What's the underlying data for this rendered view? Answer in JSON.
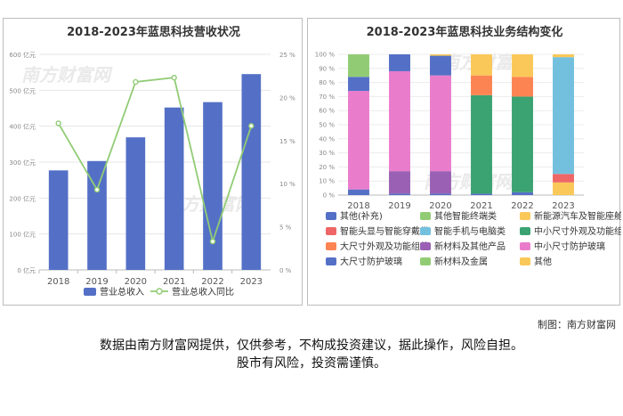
{
  "left_chart": {
    "title": "2018-2023年蓝思科技营收状况"
  },
  "right_chart": {
    "title": "2018-2023年蓝思科技业务结构变化"
  },
  "watermark": "南方财富网",
  "credit": "制图：南方财富网",
  "disclaimer_line1": "数据由南方财富网提供，仅供参考，不构成投资建议，据此操作，风险自担。",
  "disclaimer_line2": "股市有风险，投资需谨慎。",
  "colors": {
    "bar": "#5470c6",
    "line": "#91cc75"
  },
  "chart_data": [
    {
      "type": "bar",
      "title": "2018-2023年蓝思科技营收状况",
      "categories": [
        "2018",
        "2019",
        "2020",
        "2021",
        "2022",
        "2023"
      ],
      "y_ticks": [
        "0 亿元",
        "100 亿元",
        "200 亿元",
        "300 亿元",
        "400 亿元",
        "500 亿元",
        "600 亿元"
      ],
      "y2_ticks": [
        "0 %",
        "5 %",
        "10 %",
        "15 %",
        "20 %",
        "25 %"
      ],
      "ylim": [
        0,
        600
      ],
      "y2lim": [
        0,
        25
      ],
      "series": [
        {
          "name": "营业总收入",
          "type": "bar",
          "values": [
            277,
            303,
            369,
            452,
            467,
            545
          ]
        },
        {
          "name": "营业总收入同比",
          "type": "line",
          "values": [
            17,
            9.3,
            21.8,
            22.3,
            3.3,
            16.7
          ]
        }
      ],
      "legend": "bottom",
      "grid": true
    },
    {
      "type": "bar",
      "stacked": true,
      "title": "2018-2023年蓝思科技业务结构变化",
      "categories": [
        "2018",
        "2019",
        "2020",
        "2021",
        "2022",
        "2023"
      ],
      "y_ticks": [
        "0 %",
        "10 %",
        "20 %",
        "30 %",
        "40 %",
        "50 %",
        "60 %",
        "70 %",
        "80 %",
        "90 %",
        "100 %"
      ],
      "ylim": [
        0,
        100
      ],
      "series": [
        {
          "name": "其他(补充)",
          "color": "#5470c6",
          "values": [
            4,
            1,
            1,
            1,
            2,
            0
          ]
        },
        {
          "name": "新材料及其他产品",
          "color": "#9a60b4",
          "values": [
            0,
            16,
            16,
            0,
            0,
            0
          ]
        },
        {
          "name": "中小尺寸防护玻璃",
          "color": "#ea7ccc",
          "values": [
            70,
            71,
            68,
            0,
            0,
            0
          ]
        },
        {
          "name": "中小尺寸外观及功能组件",
          "color": "#3ba272",
          "values": [
            0,
            0,
            0,
            70,
            68,
            0
          ]
        },
        {
          "name": "大尺寸外观及功能组件",
          "color": "#fc8452",
          "values": [
            0,
            0,
            0,
            14,
            14,
            0
          ]
        },
        {
          "name": "新能源汽车及智能座舱类",
          "color": "#fac858",
          "values": [
            0,
            0,
            0,
            0,
            0,
            9
          ]
        },
        {
          "name": "智能头显与智能穿戴类",
          "color": "#ee6666",
          "values": [
            0,
            0,
            0,
            0,
            0,
            6
          ]
        },
        {
          "name": "智能手机与电脑类",
          "color": "#73c0de",
          "values": [
            0,
            0,
            0,
            0,
            0,
            83
          ]
        },
        {
          "name": "大尺寸防护玻璃",
          "color": "#5470c6",
          "values": [
            10,
            12,
            14,
            0,
            0,
            0
          ]
        },
        {
          "name": "其他智能终端类",
          "color": "#91cc75",
          "values": [
            0,
            0,
            0,
            0,
            0,
            0
          ]
        },
        {
          "name": "新材料及金属",
          "color": "#91cc75",
          "values": [
            16,
            0,
            0,
            0,
            0,
            0
          ]
        },
        {
          "name": "其他",
          "color": "#fac858",
          "values": [
            0,
            0,
            1,
            15,
            16,
            2
          ]
        }
      ],
      "legend_items": [
        {
          "name": "其他(补充)",
          "color": "#5470c6"
        },
        {
          "name": "其他智能终端类",
          "color": "#91cc75"
        },
        {
          "name": "新能源汽车及智能座舱类",
          "color": "#fac858"
        },
        {
          "name": "智能头显与智能穿戴类",
          "color": "#ee6666"
        },
        {
          "name": "智能手机与电脑类",
          "color": "#73c0de"
        },
        {
          "name": "中小尺寸外观及功能组件",
          "color": "#3ba272"
        },
        {
          "name": "大尺寸外观及功能组件",
          "color": "#fc8452"
        },
        {
          "name": "新材料及其他产品",
          "color": "#9a60b4"
        },
        {
          "name": "中小尺寸防护玻璃",
          "color": "#ea7ccc"
        },
        {
          "name": "大尺寸防护玻璃",
          "color": "#5470c6"
        },
        {
          "name": "新材料及金属",
          "color": "#91cc75"
        },
        {
          "name": "其他",
          "color": "#fac858"
        }
      ],
      "legend": "bottom",
      "grid": true
    }
  ]
}
